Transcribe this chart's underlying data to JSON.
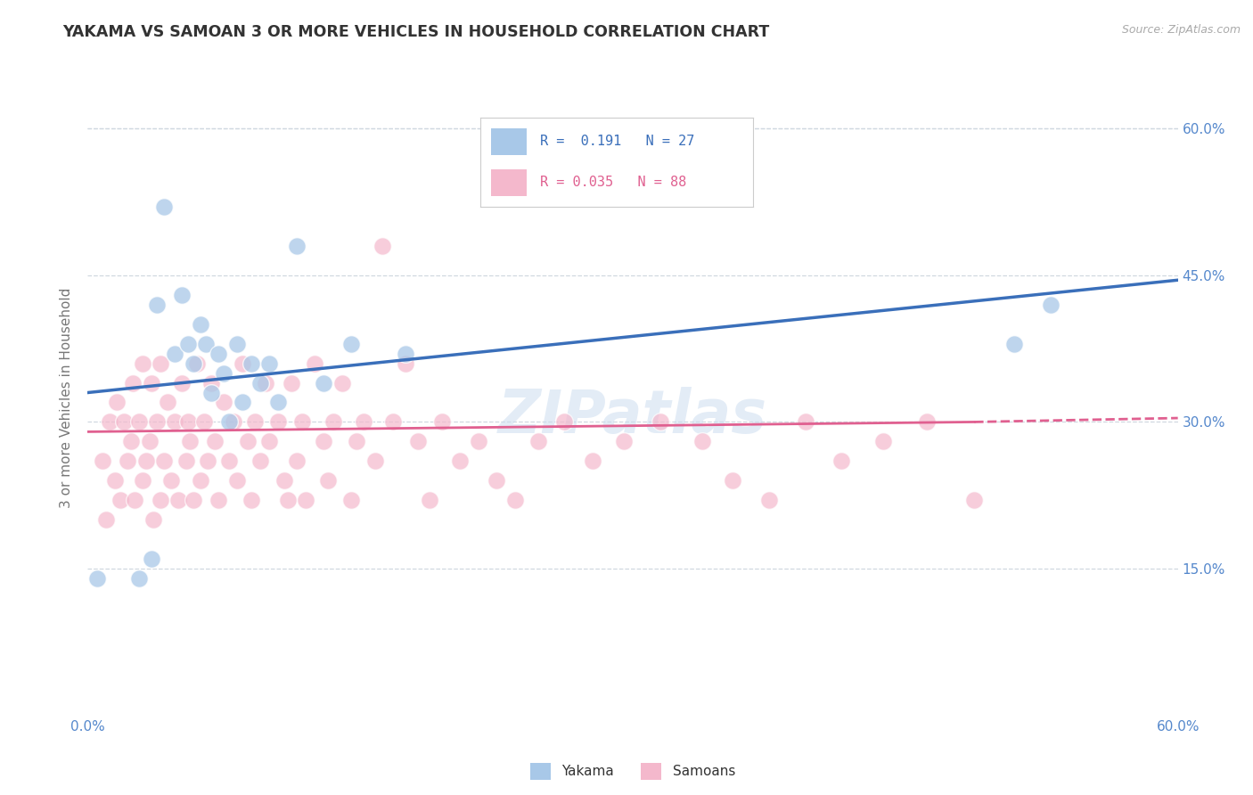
{
  "title": "YAKAMA VS SAMOAN 3 OR MORE VEHICLES IN HOUSEHOLD CORRELATION CHART",
  "source": "Source: ZipAtlas.com",
  "ylabel": "3 or more Vehicles in Household",
  "xlim": [
    0,
    0.6
  ],
  "ylim": [
    0,
    0.65
  ],
  "xtick_labels": [
    "0.0%",
    "",
    "",
    "",
    "",
    "",
    "60.0%"
  ],
  "xtick_vals": [
    0.0,
    0.1,
    0.2,
    0.3,
    0.4,
    0.5,
    0.6
  ],
  "ytick_labels_right": [
    "15.0%",
    "30.0%",
    "45.0%",
    "60.0%"
  ],
  "ytick_vals_right": [
    0.15,
    0.3,
    0.45,
    0.6
  ],
  "watermark": "ZIPatlas",
  "yakama_color": "#a8c8e8",
  "samoan_color": "#f4b8cc",
  "yakama_line_color": "#3a6fba",
  "samoan_line_color": "#e06090",
  "background_color": "#ffffff",
  "grid_color": "#d0d8e0",
  "title_color": "#333333",
  "axis_color": "#5588cc",
  "yakama_x": [
    0.005,
    0.028,
    0.035,
    0.038,
    0.042,
    0.048,
    0.052,
    0.055,
    0.058,
    0.062,
    0.065,
    0.068,
    0.072,
    0.075,
    0.078,
    0.082,
    0.085,
    0.09,
    0.095,
    0.1,
    0.105,
    0.115,
    0.13,
    0.145,
    0.175,
    0.51,
    0.53
  ],
  "yakama_y": [
    0.14,
    0.14,
    0.16,
    0.42,
    0.52,
    0.37,
    0.43,
    0.38,
    0.36,
    0.4,
    0.38,
    0.33,
    0.37,
    0.35,
    0.3,
    0.38,
    0.32,
    0.36,
    0.34,
    0.36,
    0.32,
    0.48,
    0.34,
    0.38,
    0.37,
    0.38,
    0.42
  ],
  "samoan_x": [
    0.008,
    0.01,
    0.012,
    0.015,
    0.016,
    0.018,
    0.02,
    0.022,
    0.024,
    0.025,
    0.026,
    0.028,
    0.03,
    0.03,
    0.032,
    0.034,
    0.035,
    0.036,
    0.038,
    0.04,
    0.04,
    0.042,
    0.044,
    0.046,
    0.048,
    0.05,
    0.052,
    0.054,
    0.055,
    0.056,
    0.058,
    0.06,
    0.062,
    0.064,
    0.066,
    0.068,
    0.07,
    0.072,
    0.075,
    0.078,
    0.08,
    0.082,
    0.085,
    0.088,
    0.09,
    0.092,
    0.095,
    0.098,
    0.1,
    0.105,
    0.108,
    0.11,
    0.112,
    0.115,
    0.118,
    0.12,
    0.125,
    0.13,
    0.132,
    0.135,
    0.14,
    0.145,
    0.148,
    0.152,
    0.158,
    0.162,
    0.168,
    0.175,
    0.182,
    0.188,
    0.195,
    0.205,
    0.215,
    0.225,
    0.235,
    0.248,
    0.262,
    0.278,
    0.295,
    0.315,
    0.338,
    0.355,
    0.375,
    0.395,
    0.415,
    0.438,
    0.462,
    0.488
  ],
  "samoan_y": [
    0.26,
    0.2,
    0.3,
    0.24,
    0.32,
    0.22,
    0.3,
    0.26,
    0.28,
    0.34,
    0.22,
    0.3,
    0.24,
    0.36,
    0.26,
    0.28,
    0.34,
    0.2,
    0.3,
    0.22,
    0.36,
    0.26,
    0.32,
    0.24,
    0.3,
    0.22,
    0.34,
    0.26,
    0.3,
    0.28,
    0.22,
    0.36,
    0.24,
    0.3,
    0.26,
    0.34,
    0.28,
    0.22,
    0.32,
    0.26,
    0.3,
    0.24,
    0.36,
    0.28,
    0.22,
    0.3,
    0.26,
    0.34,
    0.28,
    0.3,
    0.24,
    0.22,
    0.34,
    0.26,
    0.3,
    0.22,
    0.36,
    0.28,
    0.24,
    0.3,
    0.34,
    0.22,
    0.28,
    0.3,
    0.26,
    0.48,
    0.3,
    0.36,
    0.28,
    0.22,
    0.3,
    0.26,
    0.28,
    0.24,
    0.22,
    0.28,
    0.3,
    0.26,
    0.28,
    0.3,
    0.28,
    0.24,
    0.22,
    0.3,
    0.26,
    0.28,
    0.3,
    0.22
  ]
}
